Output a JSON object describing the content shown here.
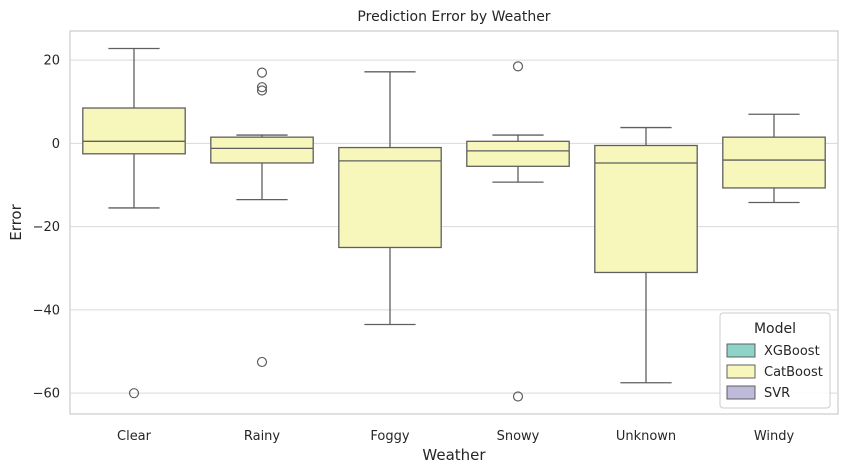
{
  "chart_data": {
    "type": "box",
    "title": "Prediction Error by Weather",
    "xlabel": "Weather",
    "ylabel": "Error",
    "ylim": [
      -65,
      27
    ],
    "yticks": [
      20,
      0,
      -20,
      -40,
      -60
    ],
    "ytick_labels": [
      "20",
      "0",
      "−20",
      "−40",
      "−60"
    ],
    "grid": "horizontal",
    "legend_position": "bottom-right",
    "legend": {
      "title": "Model",
      "entries": [
        {
          "name": "XGBoost",
          "color": "#8dd3c7"
        },
        {
          "name": "CatBoost",
          "color": "#f7f7bc"
        },
        {
          "name": "SVR",
          "color": "#bebada"
        }
      ]
    },
    "categories": [
      "Clear",
      "Rainy",
      "Foggy",
      "Snowy",
      "Unknown",
      "Windy"
    ],
    "series": [
      {
        "name": "CatBoost",
        "color": "#f7f7bc",
        "boxes": [
          {
            "category": "Clear",
            "min": -15.5,
            "q1": -2.5,
            "median": 0.5,
            "q3": 8.5,
            "max": 22.8,
            "outliers": [
              -60
            ]
          },
          {
            "category": "Rainy",
            "min": -13.5,
            "q1": -4.7,
            "median": -1.2,
            "q3": 1.5,
            "max": 2.0,
            "outliers": [
              17.0,
              13.5,
              12.7,
              -52.5
            ]
          },
          {
            "category": "Foggy",
            "min": -43.5,
            "q1": -25.0,
            "median": -4.2,
            "q3": -1.0,
            "max": 17.2,
            "outliers": []
          },
          {
            "category": "Snowy",
            "min": -9.3,
            "q1": -5.5,
            "median": -1.8,
            "q3": 0.5,
            "max": 2.0,
            "outliers": [
              18.5,
              -60.8
            ]
          },
          {
            "category": "Unknown",
            "min": -57.5,
            "q1": -31.0,
            "median": -4.7,
            "q3": -0.5,
            "max": 3.8,
            "outliers": []
          },
          {
            "category": "Windy",
            "min": -14.2,
            "q1": -10.7,
            "median": -4.0,
            "q3": 1.5,
            "max": 7.0,
            "outliers": []
          }
        ]
      }
    ]
  }
}
